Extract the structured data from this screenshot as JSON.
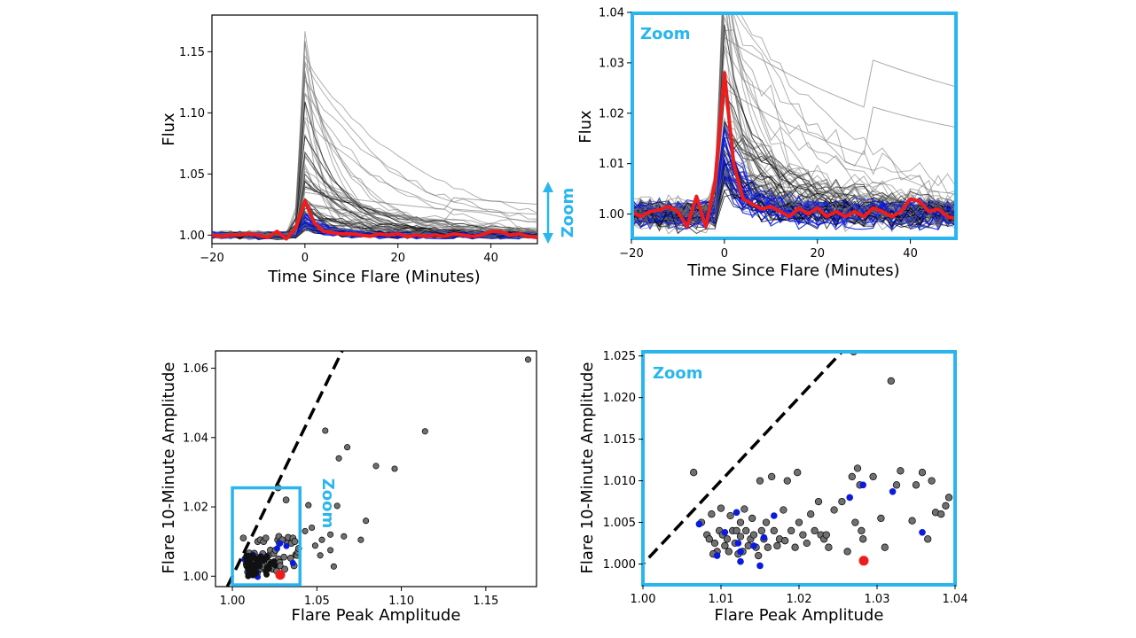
{
  "colors": {
    "accent": "#29b6ef",
    "median": "#ee1c1c",
    "blue": "#0a1adf",
    "grey": "#707070",
    "black": "#000000"
  },
  "chart_data": [
    {
      "type": "line",
      "xlabel": "Time Since Flare (Minutes)",
      "ylabel": "Flux",
      "xlim": [
        -20,
        50
      ],
      "ylim": [
        0.993,
        1.18
      ],
      "xticks": [
        -20,
        0,
        20,
        40
      ],
      "yticks": [
        1.0,
        1.05,
        1.1,
        1.15
      ],
      "xtick_labels": [
        "−20",
        "0",
        "20",
        "40"
      ],
      "ytick_labels": [
        "1.00",
        "1.05",
        "1.10",
        "1.15"
      ],
      "grid": false,
      "annotation": {
        "text": "Zoom",
        "placement": "right, vertical, with double arrow"
      },
      "median_series": {
        "x": [
          -20,
          -18,
          -16,
          -14,
          -12,
          -10,
          -8,
          -6,
          -4,
          -2,
          0,
          2,
          4,
          6,
          8,
          10,
          12,
          14,
          16,
          18,
          20,
          22,
          24,
          26,
          28,
          30,
          32,
          34,
          36,
          38,
          40,
          42,
          44,
          46,
          48,
          50
        ],
        "y": [
          1.0,
          0.999,
          1.0,
          1.0,
          1.001,
          1.0,
          0.998,
          1.003,
          0.997,
          1.006,
          1.028,
          1.01,
          1.003,
          1.002,
          1.001,
          1.001,
          1.0,
          0.999,
          1.001,
          1.0,
          1.001,
          0.999,
          1.0,
          0.999,
          1.0,
          0.999,
          1.001,
          1.0,
          0.999,
          1.0,
          1.003,
          1.003,
          1.0,
          1.001,
          0.999,
          0.998
        ]
      }
    },
    {
      "type": "line",
      "xlabel": "Time Since Flare (Minutes)",
      "ylabel": "Flux",
      "xlim": [
        -20,
        50
      ],
      "ylim": [
        0.995,
        1.04
      ],
      "xticks": [
        -20,
        0,
        20,
        40
      ],
      "yticks": [
        1.0,
        1.01,
        1.02,
        1.03,
        1.04
      ],
      "xtick_labels": [
        "−20",
        "0",
        "20",
        "40"
      ],
      "ytick_labels": [
        "1.00",
        "1.01",
        "1.02",
        "1.03",
        "1.04"
      ],
      "grid": false,
      "annotation": {
        "text": "Zoom",
        "placement": "top-left inside frame"
      },
      "median_series": {
        "x": [
          -20,
          -18,
          -16,
          -14,
          -12,
          -10,
          -8,
          -6,
          -4,
          -2,
          0,
          2,
          4,
          6,
          8,
          10,
          12,
          14,
          16,
          18,
          20,
          22,
          24,
          26,
          28,
          30,
          32,
          34,
          36,
          38,
          40,
          42,
          44,
          46,
          48,
          50
        ],
        "y": [
          1.0005,
          0.9995,
          1.0005,
          1.0008,
          1.0015,
          1.0005,
          0.9975,
          1.0035,
          0.9975,
          1.0065,
          1.028,
          1.01,
          1.003,
          1.002,
          1.001,
          1.0015,
          1.0005,
          0.9995,
          1.0012,
          1.0,
          1.0012,
          0.9995,
          1.0005,
          0.9995,
          1.0005,
          0.9995,
          1.0012,
          1.0005,
          0.9995,
          1.0005,
          1.003,
          1.0025,
          1.0005,
          1.001,
          0.9995,
          0.999
        ]
      }
    },
    {
      "type": "scatter",
      "xlabel": "Flare Peak Amplitude",
      "ylabel": "Flare 10-Minute Amplitude",
      "xlim": [
        0.99,
        1.18
      ],
      "ylim": [
        0.997,
        1.065
      ],
      "xticks": [
        1.0,
        1.05,
        1.1,
        1.15
      ],
      "yticks": [
        1.0,
        1.02,
        1.04,
        1.06
      ],
      "xtick_labels": [
        "1.00",
        "1.05",
        "1.10",
        "1.15"
      ],
      "ytick_labels": [
        "1.00",
        "1.02",
        "1.04",
        "1.06"
      ],
      "grid": false,
      "reference_line": {
        "style": "dashed",
        "slope": 1,
        "intercept": 0
      },
      "zoom_box": {
        "x": [
          1.0,
          1.04
        ],
        "y": [
          0.9975,
          1.0255
        ]
      },
      "annotation": {
        "text": "Zoom",
        "placement": "right of zoom box, vertical"
      },
      "extra_points": [
        [
          1.175,
          1.0625
        ],
        [
          1.114,
          1.0418
        ],
        [
          1.096,
          1.031
        ],
        [
          1.085,
          1.0318
        ],
        [
          1.079,
          1.016
        ],
        [
          1.076,
          1.0105
        ],
        [
          1.068,
          1.0372
        ],
        [
          1.063,
          1.034
        ],
        [
          1.055,
          1.042
        ],
        [
          1.062,
          1.0203
        ],
        [
          1.058,
          1.012
        ],
        [
          1.053,
          1.0105
        ],
        [
          1.049,
          1.0088
        ],
        [
          1.045,
          1.0205
        ],
        [
          1.058,
          1.0075
        ],
        [
          1.066,
          1.0115
        ],
        [
          1.052,
          1.006
        ],
        [
          1.047,
          1.014
        ],
        [
          1.06,
          1.0028
        ],
        [
          1.043,
          1.013
        ]
      ]
    },
    {
      "type": "scatter",
      "xlabel": "Flare Peak Amplitude",
      "ylabel": "Flare 10-Minute Amplitude",
      "xlim": [
        1.0,
        1.04
      ],
      "ylim": [
        0.9975,
        1.0255
      ],
      "xticks": [
        1.0,
        1.01,
        1.02,
        1.03,
        1.04
      ],
      "yticks": [
        1.0,
        1.005,
        1.01,
        1.015,
        1.02,
        1.025
      ],
      "xtick_labels": [
        "1.00",
        "1.01",
        "1.02",
        "1.03",
        "1.04"
      ],
      "ytick_labels": [
        "1.000",
        "1.005",
        "1.010",
        "1.015",
        "1.020",
        "1.025"
      ],
      "grid": false,
      "reference_line": {
        "style": "dashed",
        "slope": 1,
        "intercept": 0
      },
      "annotation": {
        "text": "Zoom",
        "placement": "top-left inside frame"
      },
      "series": [
        {
          "color": "grey",
          "points": [
            [
              1.0065,
              1.011
            ],
            [
              1.0075,
              1.005
            ],
            [
              1.0082,
              1.0035
            ],
            [
              1.0085,
              1.003
            ],
            [
              1.0088,
              1.006
            ],
            [
              1.0092,
              1.0025
            ],
            [
              1.0095,
              1.0015
            ],
            [
              1.0098,
              1.004
            ],
            [
              1.01,
              1.0067
            ],
            [
              1.0102,
              1.0035
            ],
            [
              1.0105,
              1.0022
            ],
            [
              1.0108,
              1.003
            ],
            [
              1.011,
              1.0015
            ],
            [
              1.0112,
              1.0058
            ],
            [
              1.0115,
              1.004
            ],
            [
              1.0118,
              1.0025
            ],
            [
              1.012,
              1.004
            ],
            [
              1.0122,
              1.0012
            ],
            [
              1.0125,
              1.0033
            ],
            [
              1.0128,
              1.0015
            ],
            [
              1.013,
              1.0066
            ],
            [
              1.0132,
              1.004
            ],
            [
              1.0135,
              1.0022
            ],
            [
              1.0138,
              1.003
            ],
            [
              1.014,
              1.0055
            ],
            [
              1.0142,
              1.0035
            ],
            [
              1.0145,
              1.002
            ],
            [
              1.0148,
              1.001
            ],
            [
              1.015,
              1.01
            ],
            [
              1.0152,
              1.004
            ],
            [
              1.0155,
              1.003
            ],
            [
              1.0158,
              1.005
            ],
            [
              1.016,
              1.002
            ],
            [
              1.0165,
              1.0105
            ],
            [
              1.0168,
              1.004
            ],
            [
              1.0172,
              1.0022
            ],
            [
              1.0175,
              1.003
            ],
            [
              1.018,
              1.0065
            ],
            [
              1.0185,
              1.01
            ],
            [
              1.019,
              1.004
            ],
            [
              1.0195,
              1.002
            ],
            [
              1.0198,
              1.011
            ],
            [
              1.02,
              1.005
            ],
            [
              1.0205,
              1.0035
            ],
            [
              1.021,
              1.0025
            ],
            [
              1.0215,
              1.006
            ],
            [
              1.022,
              1.004
            ],
            [
              1.0225,
              1.0075
            ],
            [
              1.0228,
              1.0035
            ],
            [
              1.0232,
              1.003
            ],
            [
              1.0235,
              1.0035
            ],
            [
              1.0238,
              1.002
            ],
            [
              1.0245,
              1.0065
            ],
            [
              1.0255,
              1.0075
            ],
            [
              1.0262,
              1.0015
            ],
            [
              1.0268,
              1.0105
            ],
            [
              1.0272,
              1.005
            ],
            [
              1.0275,
              1.0115
            ],
            [
              1.0278,
              1.0095
            ],
            [
              1.028,
              1.004
            ],
            [
              1.0282,
              1.003
            ],
            [
              1.027,
              1.0255
            ],
            [
              1.0295,
              1.0105
            ],
            [
              1.0305,
              1.0055
            ],
            [
              1.031,
              1.002
            ],
            [
              1.0318,
              1.022
            ],
            [
              1.0325,
              1.0095
            ],
            [
              1.033,
              1.0112
            ],
            [
              1.0345,
              1.0052
            ],
            [
              1.035,
              1.0095
            ],
            [
              1.0358,
              1.011
            ],
            [
              1.0365,
              1.003
            ],
            [
              1.037,
              1.01
            ],
            [
              1.0375,
              1.0062
            ],
            [
              1.0382,
              1.006
            ],
            [
              1.0388,
              1.007
            ],
            [
              1.0392,
              1.008
            ],
            [
              1.0182,
              1.0028
            ],
            [
              1.0125,
              1.005
            ],
            [
              1.009,
              1.0012
            ]
          ]
        },
        {
          "color": "blue",
          "points": [
            [
              1.0072,
              1.0048
            ],
            [
              1.0095,
              1.001
            ],
            [
              1.0105,
              1.0038
            ],
            [
              1.012,
              1.0062
            ],
            [
              1.0122,
              1.0025
            ],
            [
              1.0125,
              1.0015
            ],
            [
              1.0142,
              1.0022
            ],
            [
              1.0155,
              1.0032
            ],
            [
              1.015,
              0.9998
            ],
            [
              1.0168,
              1.0058
            ],
            [
              1.0265,
              1.008
            ],
            [
              1.0282,
              1.0095
            ],
            [
              1.032,
              1.0087
            ],
            [
              1.0358,
              1.0038
            ],
            [
              1.0125,
              1.0003
            ]
          ]
        },
        {
          "color": "median",
          "points": [
            [
              1.0283,
              1.0004
            ]
          ]
        }
      ]
    }
  ]
}
